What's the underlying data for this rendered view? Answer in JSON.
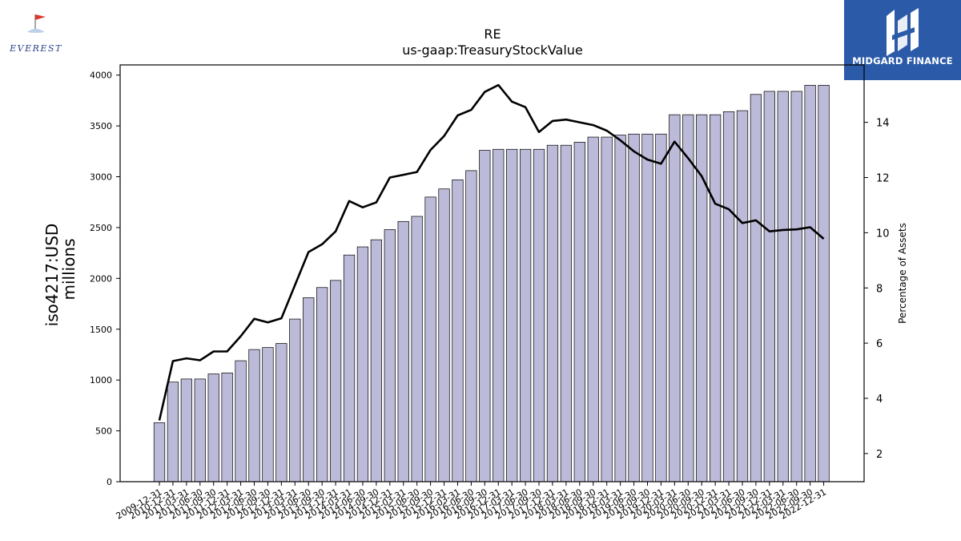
{
  "logos": {
    "left_text": "EVEREST",
    "right_text": "MIDGARD FINANCE"
  },
  "chart_data": {
    "type": "bar",
    "title": "RE",
    "subtitle": "us-gaap:TreasuryStockValue",
    "ylabel_line1": "iso4217:USD",
    "ylabel_line2": "millions",
    "y2label": "Percentage of Assets",
    "ylim": [
      0,
      4100
    ],
    "y2lim": [
      0.98,
      16.08
    ],
    "yticks": [
      0,
      500,
      1000,
      1500,
      2000,
      2500,
      3000,
      3500,
      4000
    ],
    "y2ticks": [
      2,
      4,
      6,
      8,
      10,
      12,
      14
    ],
    "grid": false,
    "bar_color": "#bcbad9",
    "line_color": "#000000",
    "categories": [
      "2009-12-31",
      "2010-12-31",
      "2011-03-31",
      "2011-06-30",
      "2011-09-30",
      "2011-12-31",
      "2012-03-31",
      "2012-06-30",
      "2012-09-30",
      "2012-12-31",
      "2013-03-31",
      "2013-06-30",
      "2013-09-30",
      "2013-12-31",
      "2014-03-31",
      "2014-06-30",
      "2014-09-30",
      "2014-12-31",
      "2015-03-31",
      "2015-06-30",
      "2015-09-30",
      "2015-12-31",
      "2016-03-31",
      "2016-06-30",
      "2016-09-30",
      "2016-12-31",
      "2017-03-31",
      "2017-06-30",
      "2017-09-30",
      "2017-12-31",
      "2018-03-31",
      "2018-06-30",
      "2018-09-30",
      "2018-12-31",
      "2019-03-31",
      "2019-06-30",
      "2019-09-30",
      "2019-12-31",
      "2020-03-31",
      "2020-06-30",
      "2020-09-30",
      "2020-12-31",
      "2021-03-31",
      "2021-06-30",
      "2021-09-30",
      "2021-12-31",
      "2022-03-31",
      "2022-06-30",
      "2022-09-30",
      "2022-12-31"
    ],
    "series": [
      {
        "axis": "left",
        "values": [
          580,
          980,
          1010,
          1010,
          1060,
          1070,
          1190,
          1300,
          1320,
          1360,
          1600,
          1810,
          1910,
          1980,
          2230,
          2310,
          2380,
          2480,
          2560,
          2610,
          2800,
          2880,
          2970,
          3060,
          3260,
          3270,
          3270,
          3270,
          3270,
          3310,
          3310,
          3340,
          3390,
          3390,
          3410,
          3420,
          3420,
          3420,
          3610,
          3610,
          3610,
          3610,
          3640,
          3650,
          3810,
          3840,
          3840,
          3840,
          3900,
          3900
        ]
      },
      {
        "axis": "right",
        "values": [
          3.2,
          5.35,
          5.45,
          5.38,
          5.7,
          5.7,
          6.25,
          6.88,
          6.75,
          6.9,
          8.1,
          9.3,
          9.58,
          10.05,
          11.15,
          10.92,
          11.1,
          12,
          12.1,
          12.2,
          13,
          13.5,
          14.25,
          14.45,
          15.1,
          15.35,
          14.75,
          14.55,
          13.65,
          14.05,
          14.1,
          14,
          13.9,
          13.7,
          13.35,
          12.95,
          12.65,
          12.5,
          13.3,
          12.7,
          12.05,
          11.05,
          10.85,
          10.35,
          10.45,
          10.05,
          10.1,
          10.12,
          10.2,
          9.78
        ]
      }
    ]
  }
}
